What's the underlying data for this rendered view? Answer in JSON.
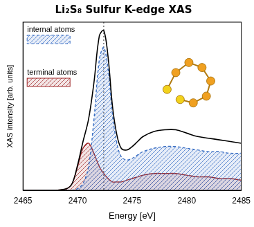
{
  "chart_data": {
    "type": "line",
    "title": "Li₂S₈ Sulfur K-edge XAS",
    "x_label": "Energy [eV]",
    "y_label": "XAS intensity [arb. units]",
    "x": [
      2465,
      2466,
      2467,
      2468,
      2469,
      2469.5,
      2470,
      2470.5,
      2471,
      2471.5,
      2472,
      2472.4,
      2472.8,
      2473.2,
      2473.6,
      2474,
      2474.5,
      2475,
      2475.5,
      2476,
      2477,
      2478,
      2479,
      2480,
      2481,
      2482,
      2483,
      2484,
      2485
    ],
    "series": [
      {
        "color": "#000000",
        "values": [
          0,
          0,
          0,
          0,
          0.01,
          0.04,
          0.15,
          0.29,
          0.42,
          0.64,
          0.92,
          0.95,
          0.79,
          0.5,
          0.33,
          0.25,
          0.24,
          0.26,
          0.29,
          0.32,
          0.35,
          0.36,
          0.36,
          0.34,
          0.32,
          0.31,
          0.3,
          0.29,
          0.28
        ]
      },
      {
        "name": "internal atoms",
        "color": "#3a6fc4",
        "line_style": "dashed",
        "values": [
          0,
          0,
          0,
          0,
          0,
          0,
          0.01,
          0.04,
          0.14,
          0.42,
          0.78,
          0.85,
          0.72,
          0.45,
          0.28,
          0.2,
          0.18,
          0.19,
          0.21,
          0.23,
          0.25,
          0.26,
          0.26,
          0.25,
          0.24,
          0.23,
          0.23,
          0.22,
          0.22
        ]
      },
      {
        "name": "terminal atoms",
        "color": "#a0282a",
        "values": [
          0,
          0,
          0,
          0,
          0.01,
          0.04,
          0.14,
          0.25,
          0.28,
          0.22,
          0.14,
          0.1,
          0.07,
          0.05,
          0.05,
          0.05,
          0.06,
          0.07,
          0.08,
          0.09,
          0.1,
          0.1,
          0.1,
          0.09,
          0.08,
          0.08,
          0.07,
          0.07,
          0.06
        ]
      }
    ],
    "xlim": [
      2465,
      2485
    ],
    "xticks": [
      2465,
      2470,
      2475,
      2480,
      2485
    ],
    "ylim": [
      0,
      1
    ],
    "yticks": [],
    "tick_labels": "x",
    "grid": false,
    "legend": "upper left",
    "vline": 2472.4
  }
}
